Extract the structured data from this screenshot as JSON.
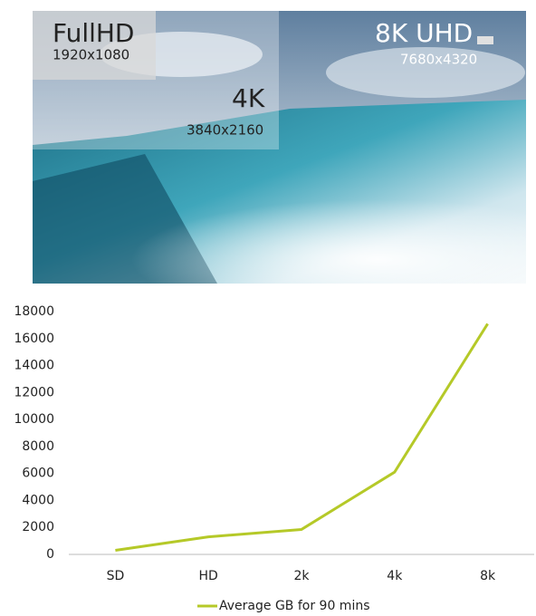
{
  "banner": {
    "labels": [
      {
        "name": "FullHD",
        "resolution": "1920x1080"
      },
      {
        "name": "4K",
        "resolution": "3840x2160"
      },
      {
        "name": "8K UHD",
        "resolution": "7680x4320"
      }
    ]
  },
  "chart_data": {
    "type": "line",
    "categories": [
      "SD",
      "HD",
      "2k",
      "4k",
      "8k"
    ],
    "series": [
      {
        "name": "Average GB for 90 mins",
        "color": "#b5c928",
        "values": [
          300,
          1300,
          1850,
          6100,
          17100
        ]
      }
    ],
    "ylim": [
      0,
      18000
    ],
    "yticks": [
      0,
      2000,
      4000,
      6000,
      8000,
      10000,
      12000,
      14000,
      16000,
      18000
    ],
    "grid": false,
    "legend": "bottom"
  }
}
